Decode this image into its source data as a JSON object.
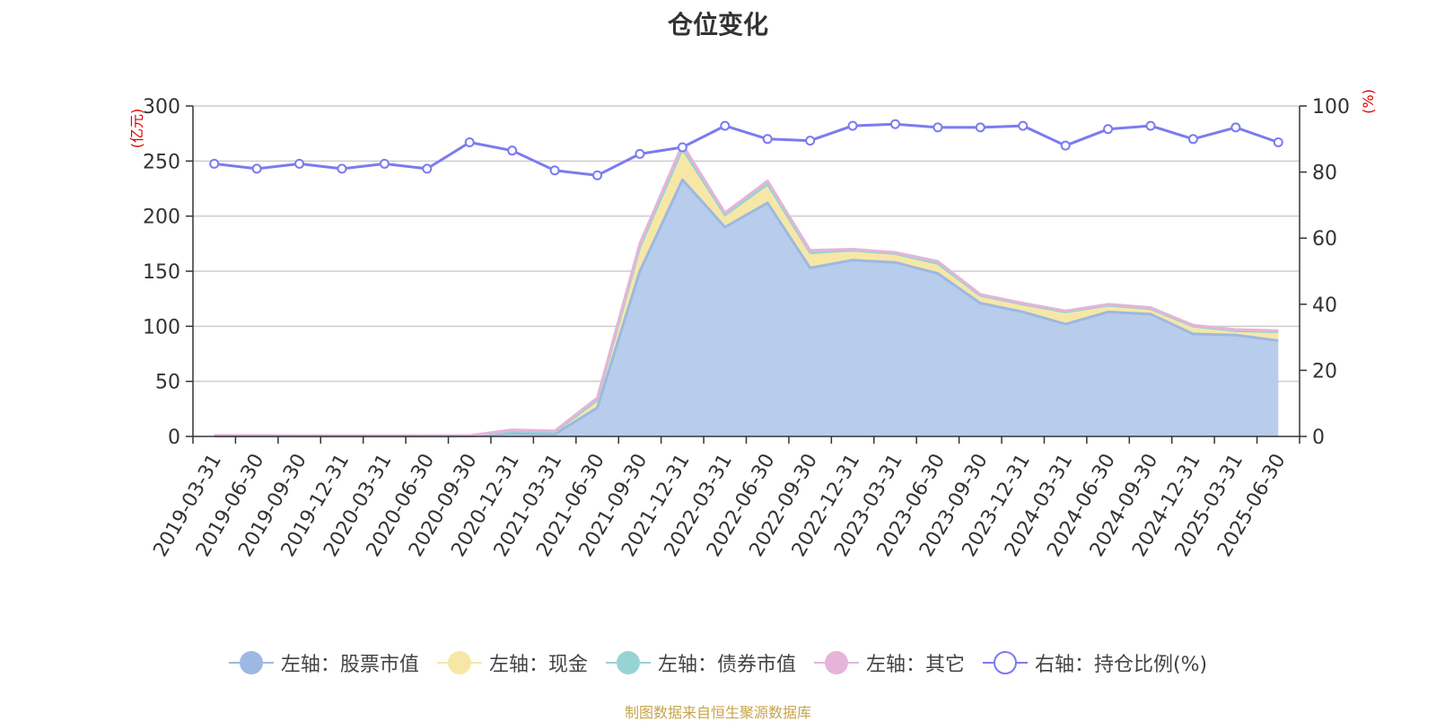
{
  "title": "仓位变化",
  "source": "制图数据来自恒生聚源数据库",
  "legend": [
    {
      "label": "左轴：股票市值",
      "color": "#9db8e2",
      "hollow": false
    },
    {
      "label": "左轴：现金",
      "color": "#f7e7a7",
      "hollow": false
    },
    {
      "label": "左轴：债券市值",
      "color": "#98d3d3",
      "hollow": false
    },
    {
      "label": "左轴：其它",
      "color": "#e6b4d8",
      "hollow": false
    },
    {
      "label": "右轴：持仓比例(%)",
      "color": "#7b7bef",
      "hollow": true
    }
  ],
  "chart_data": {
    "type": "area",
    "categories": [
      "2019-03-31",
      "2019-06-30",
      "2019-09-30",
      "2019-12-31",
      "2020-03-31",
      "2020-06-30",
      "2020-09-30",
      "2020-12-31",
      "2021-03-31",
      "2021-06-30",
      "2021-09-30",
      "2021-12-31",
      "2022-03-31",
      "2022-06-30",
      "2022-09-30",
      "2022-12-31",
      "2023-03-31",
      "2023-06-30",
      "2023-09-30",
      "2023-12-31",
      "2024-03-31",
      "2024-06-30",
      "2024-09-30",
      "2024-12-31",
      "2025-03-31",
      "2025-06-30"
    ],
    "y_left": {
      "label": "(亿元)",
      "min": 0,
      "max": 300,
      "ticks": [
        0,
        50,
        100,
        150,
        200,
        250,
        300
      ]
    },
    "y_right": {
      "label": "(%)",
      "min": 0,
      "max": 100,
      "ticks": [
        0,
        20,
        40,
        60,
        80,
        100
      ]
    },
    "grid": true,
    "legend_position": "bottom",
    "stacked_series": [
      {
        "name": "左轴：股票市值",
        "color": "#9db8e2",
        "fill": "#b7cdeb",
        "values": [
          0.3,
          0.3,
          0.2,
          0.2,
          0.2,
          0.2,
          0.3,
          3,
          2,
          26,
          150,
          233,
          190,
          212,
          153,
          160,
          158,
          148,
          121,
          113,
          102,
          113,
          111,
          93,
          92,
          87
        ]
      },
      {
        "name": "左轴：现金",
        "color": "#f7e7a7",
        "fill": "#f7e7a7",
        "values": [
          0.5,
          0.4,
          0.3,
          0.3,
          0.3,
          0.3,
          0.3,
          2,
          2,
          7,
          22,
          28,
          11,
          17,
          11,
          7,
          6,
          7,
          7,
          7,
          11,
          6,
          5,
          7,
          4,
          6
        ]
      },
      {
        "name": "左轴：债券市值",
        "color": "#98d3d3",
        "fill": "#98d3d3",
        "values": [
          0,
          0,
          0,
          0,
          0,
          0,
          0,
          0,
          0,
          0,
          0,
          0,
          0,
          0,
          3,
          2,
          2,
          2,
          0,
          0,
          0,
          0,
          0,
          0,
          0,
          2
        ]
      },
      {
        "name": "左轴：其它",
        "color": "#e6b4d8",
        "fill": "#e6b4d8",
        "values": [
          0.2,
          0.2,
          0.2,
          0.2,
          0.2,
          0.2,
          0.2,
          1,
          1,
          2,
          3,
          4,
          2,
          3,
          2,
          1,
          1,
          2,
          1,
          1,
          1,
          1,
          1,
          1,
          1,
          1
        ]
      }
    ],
    "line_series": {
      "name": "右轴：持仓比例(%)",
      "color": "#7b7bef",
      "axis": "right",
      "values": [
        82.5,
        81,
        82.5,
        81,
        82.5,
        81,
        89,
        86.5,
        80.5,
        79,
        85.5,
        87.5,
        94,
        90,
        89.5,
        94,
        94.5,
        93.5,
        93.5,
        94,
        88,
        93,
        94,
        90,
        93.5,
        89
      ]
    }
  }
}
